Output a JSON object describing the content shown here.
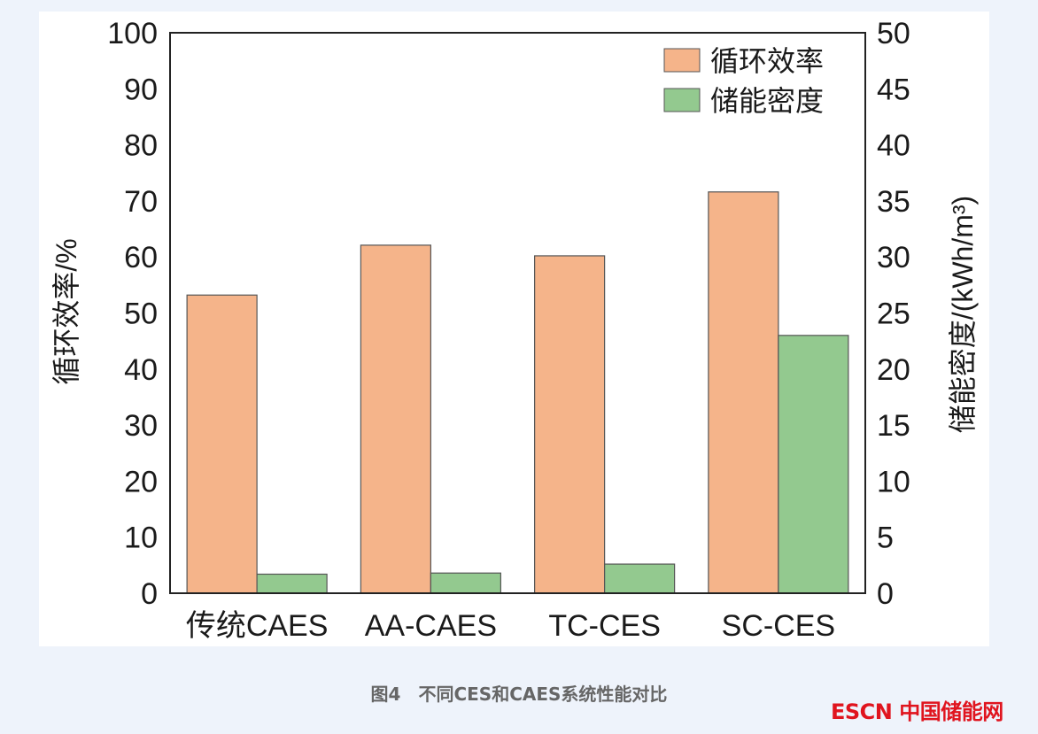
{
  "chart_data": {
    "type": "bar",
    "categories": [
      "传统CAES",
      "AA-CAES",
      "TC-CES",
      "SC-CES"
    ],
    "series": [
      {
        "name": "循环效率",
        "axis": "left",
        "color": "#f5b48a",
        "values": [
          53.2,
          62.1,
          60.2,
          71.6
        ]
      },
      {
        "name": "储能密度",
        "axis": "right",
        "color": "#93c98f",
        "values": [
          1.7,
          1.8,
          2.6,
          23.0
        ]
      }
    ],
    "ylabel": "循环效率/%",
    "ylabel_right": "储能密度/(kWh/m³)",
    "ylim": [
      0,
      100
    ],
    "ylim_right": [
      0,
      50
    ],
    "yticks": [
      0,
      10,
      20,
      30,
      40,
      50,
      60,
      70,
      80,
      90,
      100
    ],
    "yticks_right": [
      0,
      5,
      10,
      15,
      20,
      25,
      30,
      35,
      40,
      45,
      50
    ],
    "legend_position": "top-right",
    "grid": false
  },
  "caption": "图4　不同CES和CAES系统性能对比",
  "logo_text": "ESCN中国储能网"
}
